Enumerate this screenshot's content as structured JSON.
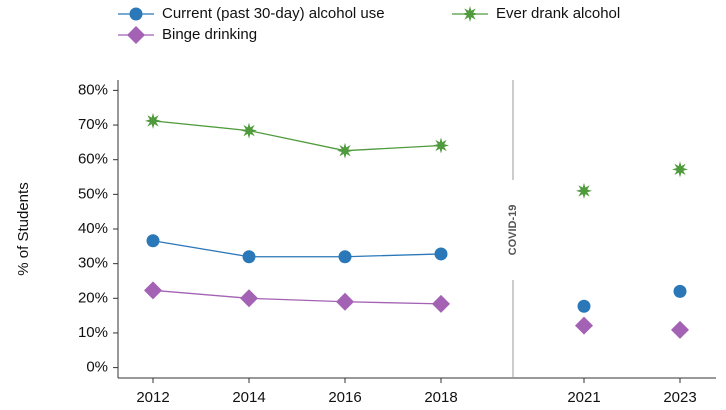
{
  "chart_data": {
    "type": "line",
    "ylabel": "% of Students",
    "categories": [
      "2012",
      "2014",
      "2016",
      "2018",
      "2021",
      "2023"
    ],
    "series": [
      {
        "name": "Current (past 30-day) alcohol use",
        "color": "#2b78b8",
        "marker": "circle",
        "values": [
          36.6,
          32,
          32,
          32.8,
          17.7,
          22
        ]
      },
      {
        "name": "Ever drank alcohol",
        "color": "#4f9a3c",
        "marker": "star",
        "values": [
          71.2,
          68.4,
          62.6,
          64.1,
          51,
          57.2
        ]
      },
      {
        "name": "Binge drinking",
        "color": "#a362b3",
        "marker": "diamond",
        "values": [
          22.3,
          20,
          19,
          18.4,
          12.1,
          10.9
        ]
      }
    ],
    "annotations": [
      {
        "text": "COVID-19"
      }
    ],
    "ylim": [
      -3,
      83
    ],
    "yticks": [
      {
        "value": 0,
        "label": "0%"
      },
      {
        "value": 10,
        "label": "10%"
      },
      {
        "value": 20,
        "label": "20%"
      },
      {
        "value": 30,
        "label": "30%"
      },
      {
        "value": 40,
        "label": "40%"
      },
      {
        "value": 50,
        "label": "50%"
      },
      {
        "value": 60,
        "label": "60%"
      },
      {
        "value": 70,
        "label": "70%"
      },
      {
        "value": 80,
        "label": "80%"
      }
    ],
    "legend": "top"
  }
}
